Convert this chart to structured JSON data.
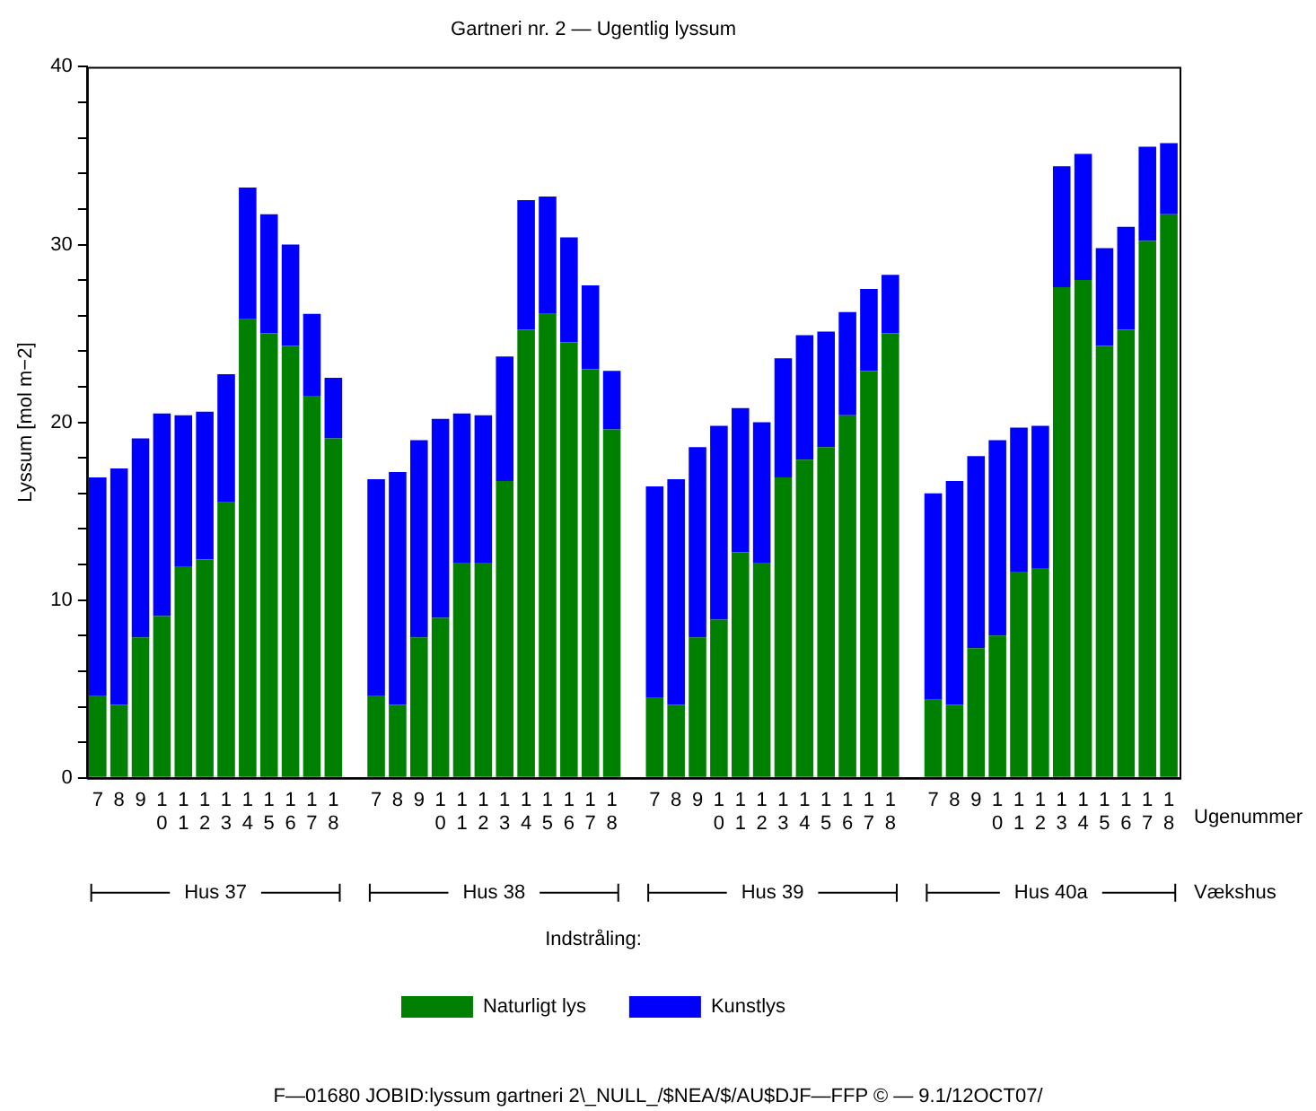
{
  "chart_data": {
    "type": "bar",
    "stacked": true,
    "title": "Gartneri nr. 2 — Ugentlig lyssum",
    "xlabel": "Ugenummer",
    "ylabel": "Lyssum [mol m−2]",
    "legend_title": "Indstråling:",
    "legend": "bottom",
    "grid": false,
    "categories": [
      "7",
      "8",
      "9",
      "10",
      "11",
      "12",
      "13",
      "14",
      "15",
      "16",
      "17",
      "18",
      null,
      "7",
      "8",
      "9",
      "10",
      "11",
      "12",
      "13",
      "14",
      "15",
      "16",
      "17",
      "18",
      null,
      "7",
      "8",
      "9",
      "10",
      "11",
      "12",
      "13",
      "14",
      "15",
      "16",
      "17",
      "18",
      null,
      "7",
      "8",
      "9",
      "10",
      "11",
      "12",
      "13",
      "14",
      "15",
      "16",
      "17",
      "18"
    ],
    "series": [
      {
        "name": "Naturligt lys",
        "color": "#008000",
        "values": [
          4.6,
          4.1,
          7.9,
          9.1,
          11.9,
          12.3,
          15.5,
          25.8,
          25.0,
          24.3,
          21.5,
          19.1,
          null,
          4.6,
          4.1,
          7.9,
          9.0,
          12.1,
          12.1,
          16.7,
          25.2,
          26.1,
          24.5,
          23.0,
          19.6,
          null,
          4.5,
          4.1,
          7.9,
          8.9,
          12.7,
          12.1,
          16.9,
          17.9,
          18.6,
          20.4,
          22.9,
          25.0,
          null,
          4.4,
          4.1,
          7.3,
          8.0,
          11.6,
          11.8,
          27.6,
          28.0,
          24.3,
          25.2,
          30.2,
          31.7
        ]
      },
      {
        "name": "Kunstlys",
        "color": "#0000ff",
        "values": [
          12.3,
          13.3,
          11.2,
          11.4,
          8.5,
          8.3,
          7.2,
          7.4,
          6.7,
          5.7,
          4.6,
          3.4,
          null,
          12.2,
          13.1,
          11.1,
          11.2,
          8.4,
          8.3,
          7.0,
          7.3,
          6.6,
          5.9,
          4.7,
          3.3,
          null,
          11.9,
          12.7,
          10.7,
          10.9,
          8.1,
          7.9,
          6.7,
          7.0,
          6.5,
          5.8,
          4.6,
          3.3,
          null,
          11.6,
          12.6,
          10.8,
          11.0,
          8.1,
          8.0,
          6.8,
          7.1,
          5.5,
          5.8,
          5.3,
          4.0
        ]
      }
    ],
    "ylim": [
      0,
      40
    ],
    "yticks": [
      0,
      {
        "value": 2,
        "label": null
      },
      {
        "value": 4,
        "label": null
      },
      {
        "value": 6,
        "label": null
      },
      {
        "value": 8,
        "label": null
      },
      10,
      {
        "value": 12,
        "label": null
      },
      {
        "value": 14,
        "label": null
      },
      {
        "value": 16,
        "label": null
      },
      {
        "value": 18,
        "label": null
      },
      20,
      {
        "value": 22,
        "label": null
      },
      {
        "value": 24,
        "label": null
      },
      {
        "value": 26,
        "label": null
      },
      {
        "value": 28,
        "label": null
      },
      30,
      {
        "value": 32,
        "label": null
      },
      {
        "value": 34,
        "label": null
      },
      {
        "value": 36,
        "label": null
      },
      {
        "value": 38,
        "label": null
      },
      40
    ],
    "annotations": [
      "Hus 37",
      "Hus 38",
      "Hus 39",
      "Hus 40a",
      "Vækshus",
      "F—01680 JOBID:lyssum gartneri 2\\_NULL_/$NEA/$/AU$DJF—FFP © — 9.1/12OCT07/"
    ]
  }
}
